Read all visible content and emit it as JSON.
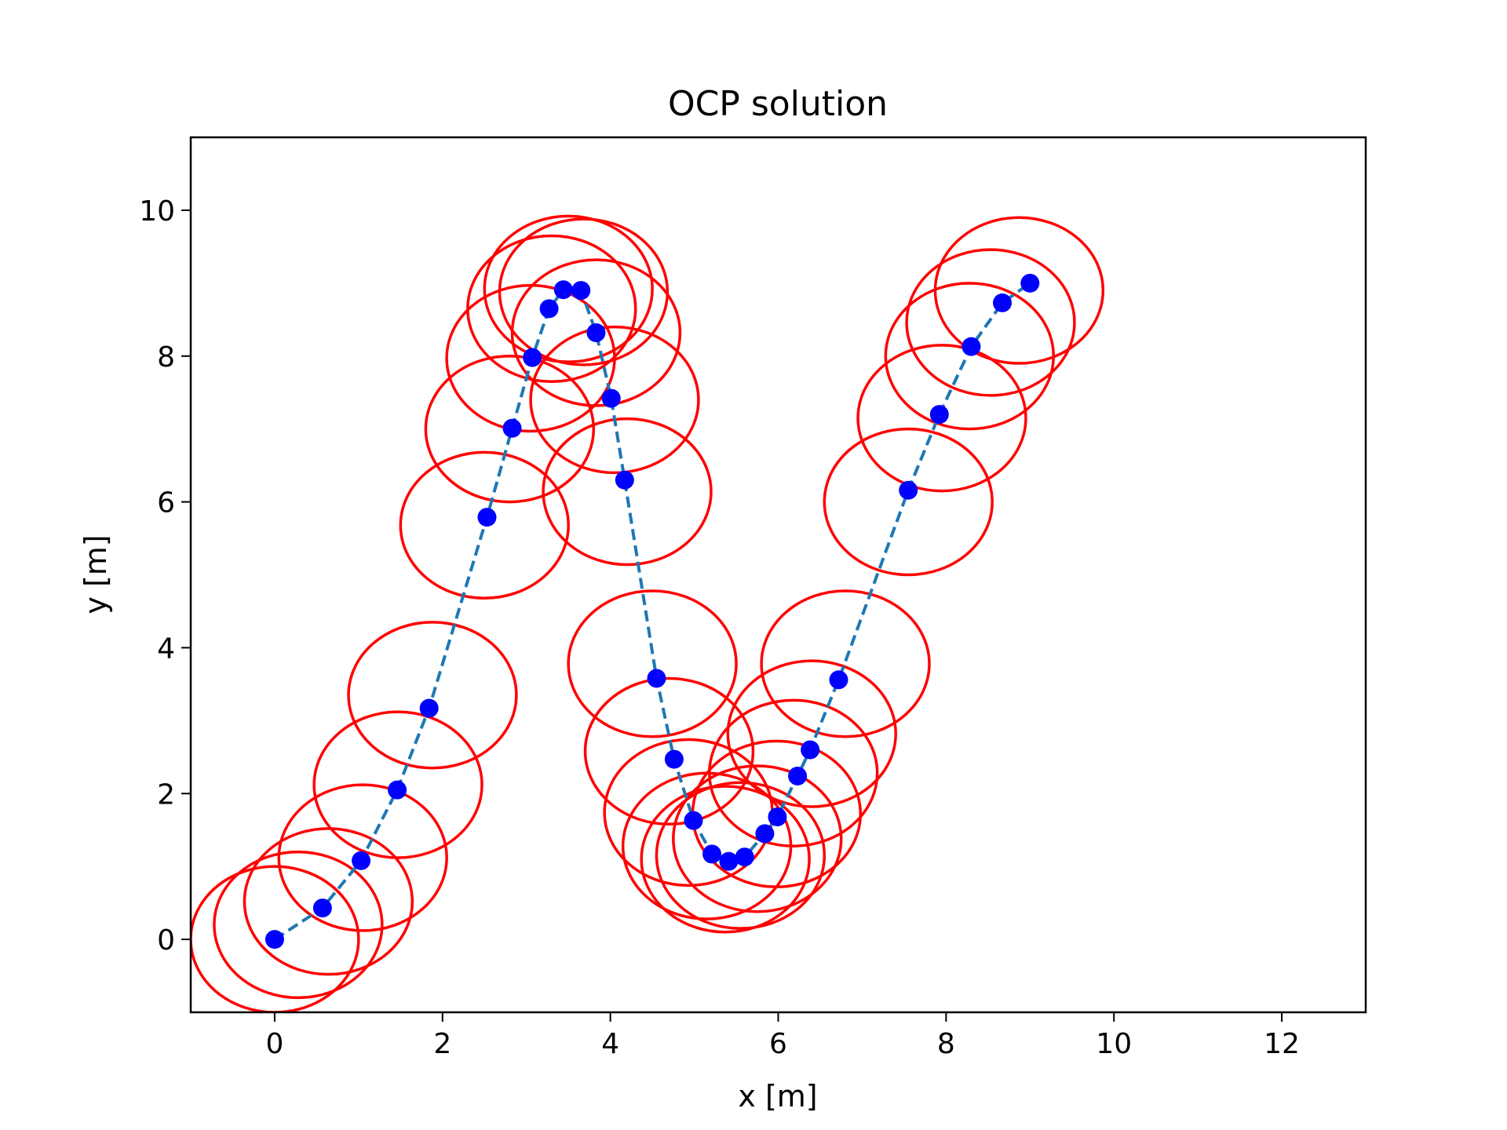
{
  "chart_data": {
    "type": "line",
    "title": "OCP solution",
    "xlabel": "x [m]",
    "ylabel": "y [m]",
    "xlim": [
      -1.0,
      13.0
    ],
    "ylim": [
      -1.0,
      11.0
    ],
    "xticks": [
      0,
      2,
      4,
      6,
      8,
      10,
      12
    ],
    "yticks": [
      0,
      2,
      4,
      6,
      8,
      10
    ],
    "grid": false,
    "colors": {
      "trajectory_line": "#1f77b4",
      "trajectory_points": "#0000ff",
      "circles": "#ff0000"
    },
    "series": [
      {
        "style": "dashed-line-with-points",
        "points": [
          [
            0.0,
            0.0
          ],
          [
            0.57,
            0.43
          ],
          [
            1.03,
            1.08
          ],
          [
            1.46,
            2.05
          ],
          [
            1.84,
            3.17
          ],
          [
            2.53,
            5.79
          ],
          [
            2.83,
            7.01
          ],
          [
            3.07,
            7.98
          ],
          [
            3.27,
            8.65
          ],
          [
            3.44,
            8.91
          ],
          [
            3.65,
            8.9
          ],
          [
            3.83,
            8.32
          ],
          [
            4.01,
            7.42
          ],
          [
            4.17,
            6.3
          ],
          [
            4.55,
            3.58
          ],
          [
            4.76,
            2.47
          ],
          [
            4.99,
            1.63
          ],
          [
            5.21,
            1.17
          ],
          [
            5.41,
            1.07
          ],
          [
            5.6,
            1.13
          ],
          [
            5.84,
            1.45
          ],
          [
            5.99,
            1.68
          ],
          [
            6.23,
            2.24
          ],
          [
            6.38,
            2.6
          ],
          [
            6.72,
            3.56
          ],
          [
            7.55,
            6.16
          ],
          [
            7.92,
            7.2
          ],
          [
            8.3,
            8.13
          ],
          [
            8.67,
            8.73
          ],
          [
            9.0,
            9.0
          ]
        ]
      }
    ],
    "circles": {
      "radius_x": 1.0,
      "radius_y": 1.0,
      "centers": [
        [
          0.0,
          0.0
        ],
        [
          0.28,
          0.2
        ],
        [
          0.64,
          0.52
        ],
        [
          1.05,
          1.12
        ],
        [
          1.47,
          2.12
        ],
        [
          1.88,
          3.35
        ],
        [
          2.5,
          5.68
        ],
        [
          2.8,
          7.0
        ],
        [
          3.05,
          7.97
        ],
        [
          3.3,
          8.65
        ],
        [
          3.5,
          8.92
        ],
        [
          3.68,
          8.88
        ],
        [
          3.83,
          8.32
        ],
        [
          4.05,
          7.4
        ],
        [
          4.2,
          6.14
        ],
        [
          4.5,
          3.78
        ],
        [
          4.7,
          2.58
        ],
        [
          4.93,
          1.74
        ],
        [
          5.15,
          1.28
        ],
        [
          5.37,
          1.1
        ],
        [
          5.55,
          1.15
        ],
        [
          5.75,
          1.38
        ],
        [
          5.98,
          1.72
        ],
        [
          6.18,
          2.28
        ],
        [
          6.4,
          2.82
        ],
        [
          6.8,
          3.78
        ],
        [
          7.55,
          6.0
        ],
        [
          7.95,
          7.15
        ],
        [
          8.28,
          8.0
        ],
        [
          8.53,
          8.46
        ],
        [
          8.87,
          8.9
        ]
      ]
    }
  }
}
